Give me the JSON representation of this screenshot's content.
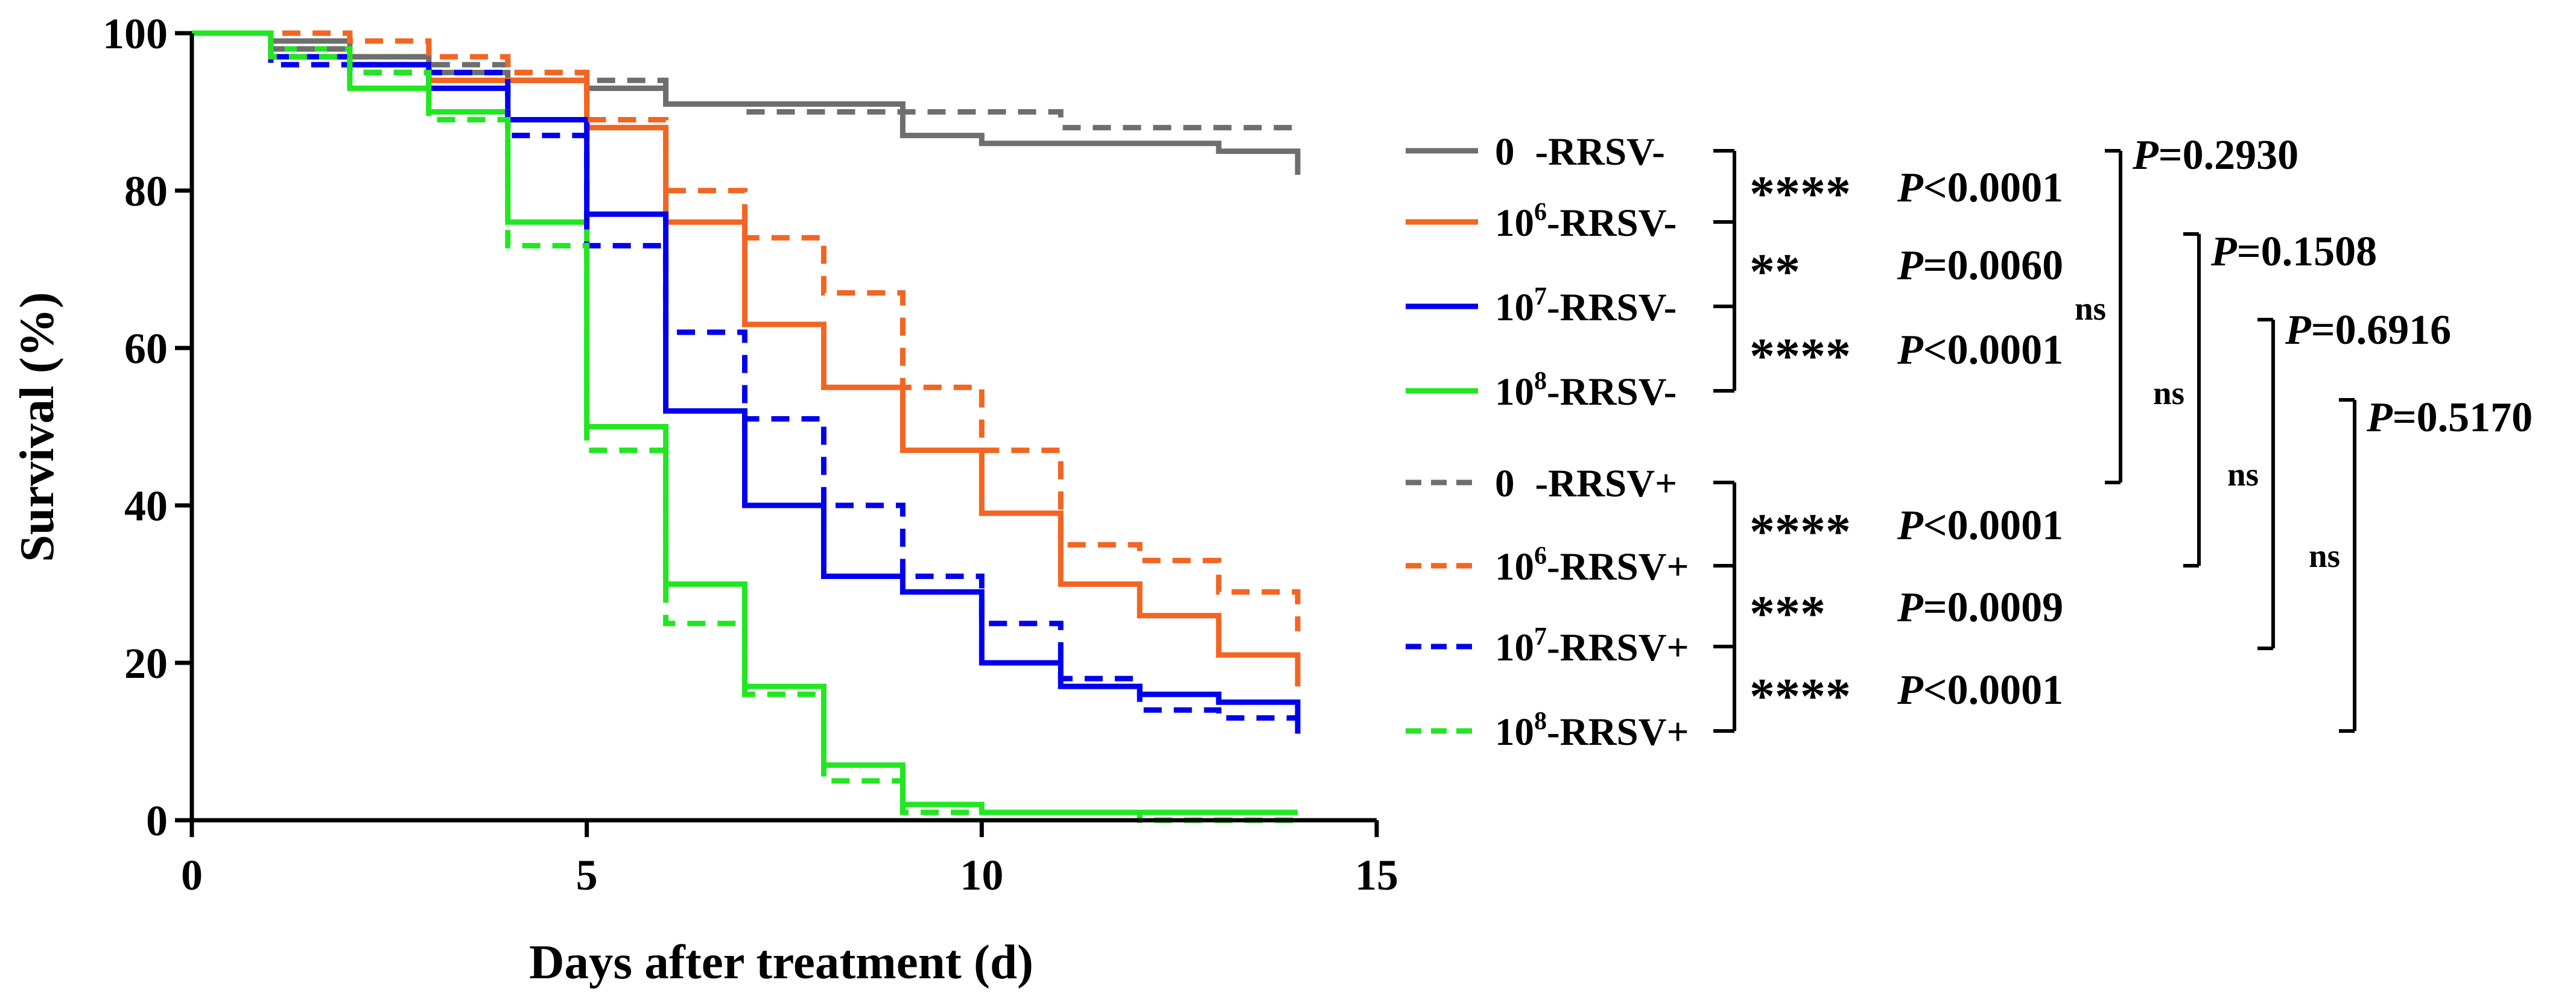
{
  "chart_data": {
    "type": "line",
    "step": true,
    "title": "",
    "xlabel": "Days after treatment (d)",
    "ylabel": "Survival (%)",
    "xlim": [
      0,
      15
    ],
    "ylim": [
      0,
      100
    ],
    "xticks": [
      0,
      5,
      10,
      15
    ],
    "yticks": [
      0,
      20,
      40,
      60,
      80,
      100
    ],
    "x": [
      0,
      1,
      2,
      3,
      4,
      5,
      6,
      7,
      8,
      9,
      10,
      11,
      12,
      13,
      14
    ],
    "legend_position": "right",
    "series": [
      {
        "name": "0 -RRSV-",
        "label_main": "0",
        "label_exp": "",
        "label_suffix": "-RRSV-",
        "color": "#6e6e6e",
        "dashed": false,
        "values": [
          100,
          99,
          97,
          95,
          94,
          93,
          91,
          91,
          91,
          87,
          86,
          86,
          86,
          85,
          82
        ]
      },
      {
        "name": "10^6-RRSV-",
        "label_main": "10",
        "label_exp": "6",
        "label_suffix": "-RRSV-",
        "color": "#f26522",
        "dashed": false,
        "values": [
          100,
          97,
          96,
          94,
          94,
          88,
          76,
          63,
          55,
          47,
          39,
          30,
          26,
          21,
          17
        ]
      },
      {
        "name": "10^7-RRSV-",
        "label_main": "10",
        "label_exp": "7",
        "label_suffix": "-RRSV-",
        "color": "#0000ee",
        "dashed": false,
        "values": [
          100,
          97,
          96,
          93,
          89,
          77,
          52,
          40,
          31,
          29,
          20,
          17,
          16,
          15,
          11
        ]
      },
      {
        "name": "10^8-RRSV-",
        "label_main": "10",
        "label_exp": "8",
        "label_suffix": "-RRSV-",
        "color": "#22e622",
        "dashed": false,
        "values": [
          100,
          98,
          93,
          90,
          76,
          50,
          30,
          17,
          7,
          2,
          1,
          1,
          1,
          1,
          1
        ]
      },
      {
        "name": "0 -RRSV+",
        "label_main": "0",
        "label_exp": "",
        "label_suffix": "-RRSV+",
        "color": "#6e6e6e",
        "dashed": true,
        "values": [
          100,
          98,
          97,
          96,
          95,
          94,
          91,
          90,
          90,
          90,
          90,
          88,
          88,
          88,
          88
        ]
      },
      {
        "name": "10^6-RRSV+",
        "label_main": "10",
        "label_exp": "6",
        "label_suffix": "-RRSV+",
        "color": "#f26522",
        "dashed": true,
        "values": [
          100,
          100,
          99,
          97,
          95,
          89,
          80,
          74,
          67,
          55,
          47,
          35,
          33,
          29,
          24
        ]
      },
      {
        "name": "10^7-RRSV+",
        "label_main": "10",
        "label_exp": "7",
        "label_suffix": "-RRSV+",
        "color": "#0000ee",
        "dashed": true,
        "values": [
          100,
          96,
          95,
          95,
          87,
          73,
          62,
          51,
          40,
          31,
          25,
          18,
          14,
          13,
          13
        ]
      },
      {
        "name": "10^8-RRSV+",
        "label_main": "10",
        "label_exp": "8",
        "label_suffix": "-RRSV+",
        "color": "#22e622",
        "dashed": true,
        "values": [
          100,
          97,
          95,
          89,
          73,
          47,
          25,
          16,
          5,
          1,
          1,
          1,
          0,
          0,
          0
        ]
      }
    ],
    "comparisons": [
      {
        "between": [
          "0 -RRSV-",
          "10^6-RRSV-"
        ],
        "stars": "****",
        "p_prefix": "P",
        "p_rest": "<0.0001"
      },
      {
        "between": [
          "10^6-RRSV-",
          "10^7-RRSV-"
        ],
        "stars": "**",
        "p_prefix": "P",
        "p_rest": "=0.0060"
      },
      {
        "between": [
          "10^7-RRSV-",
          "10^8-RRSV-"
        ],
        "stars": "****",
        "p_prefix": "P",
        "p_rest": "<0.0001"
      },
      {
        "between": [
          "0 -RRSV+",
          "10^6-RRSV+"
        ],
        "stars": "****",
        "p_prefix": "P",
        "p_rest": "<0.0001"
      },
      {
        "between": [
          "10^6-RRSV+",
          "10^7-RRSV+"
        ],
        "stars": "***",
        "p_prefix": "P",
        "p_rest": "=0.0009"
      },
      {
        "between": [
          "10^7-RRSV+",
          "10^8-RRSV+"
        ],
        "stars": "****",
        "p_prefix": "P",
        "p_rest": "<0.0001"
      }
    ],
    "pair_comparisons": [
      {
        "between": [
          "0 -RRSV-",
          "0 -RRSV+"
        ],
        "label": "ns",
        "p_prefix": "P",
        "p_rest": "=0.2930"
      },
      {
        "between": [
          "10^6-RRSV-",
          "10^6-RRSV+"
        ],
        "label": "ns",
        "p_prefix": "P",
        "p_rest": "=0.1508"
      },
      {
        "between": [
          "10^7-RRSV-",
          "10^7-RRSV+"
        ],
        "label": "ns",
        "p_prefix": "P",
        "p_rest": "=0.6916"
      },
      {
        "between": [
          "10^8-RRSV-",
          "10^8-RRSV+"
        ],
        "label": "ns",
        "p_prefix": "P",
        "p_rest": "=0.5170"
      }
    ]
  }
}
